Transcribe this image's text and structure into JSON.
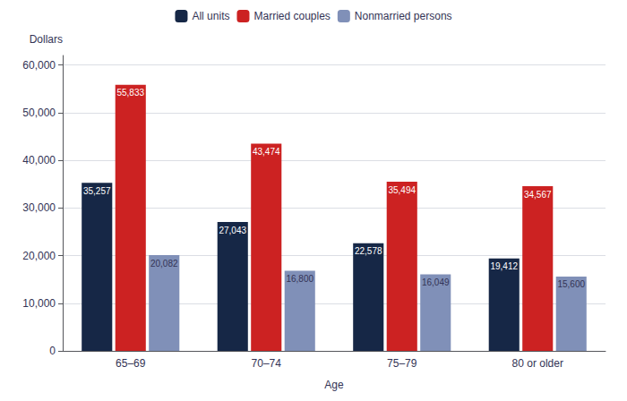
{
  "chart_data": {
    "type": "bar",
    "xlabel": "Age",
    "ylabel": "Dollars",
    "categories": [
      "65–69",
      "70–74",
      "75–79",
      "80 or older"
    ],
    "series": [
      {
        "name": "All units",
        "color": "#162746",
        "values": [
          35257,
          27043,
          22578,
          19412
        ],
        "value_labels": [
          "35,257",
          "27,043",
          "22,578",
          "19,412"
        ]
      },
      {
        "name": "Married couples",
        "color": "#cc2222",
        "values": [
          55833,
          43474,
          35494,
          34567
        ],
        "value_labels": [
          "55,833",
          "43,474",
          "35,494",
          "34,567"
        ]
      },
      {
        "name": "Nonmarried persons",
        "color": "#8090b8",
        "values": [
          20082,
          16800,
          16049,
          15600
        ],
        "value_labels": [
          "20,082",
          "16,800",
          "16,049",
          "15,600"
        ]
      }
    ],
    "ylim": [
      0,
      62000
    ],
    "yticks": [
      0,
      {
        "value": 10000,
        "label": "10,000"
      },
      {
        "value": 20000,
        "label": "20,000"
      },
      {
        "value": 30000,
        "label": "30,000"
      },
      {
        "value": 40000,
        "label": "40,000"
      },
      {
        "value": 50000,
        "label": "50,000"
      },
      {
        "value": 60000,
        "label": "60,000"
      }
    ],
    "grid": true,
    "legend": "top",
    "data_labels": true
  }
}
